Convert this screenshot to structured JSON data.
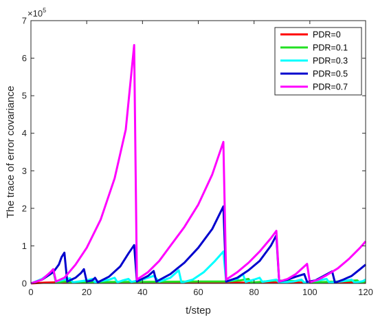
{
  "chart_data": {
    "type": "line",
    "xlabel": "t/step",
    "ylabel": "The trace of error covariance",
    "y_multiplier": "×10",
    "y_multiplier_exponent": "5",
    "xlim": [
      0,
      120
    ],
    "ylim": [
      0,
      7
    ],
    "y_units": "x10^5",
    "x_ticks": [
      "0",
      "20",
      "40",
      "60",
      "80",
      "100",
      "120"
    ],
    "y_ticks": [
      "0",
      "1",
      "2",
      "3",
      "4",
      "5",
      "6",
      "7"
    ],
    "grid": false,
    "legend_position": "top-right",
    "series": [
      {
        "name": "PDR=0",
        "color": "#ff0000",
        "points": [
          [
            0,
            0
          ],
          [
            5,
            0.02
          ],
          [
            10,
            0.03
          ],
          [
            15,
            0.03
          ],
          [
            20,
            0.03
          ],
          [
            30,
            0.03
          ],
          [
            40,
            0.02
          ],
          [
            60,
            0.02
          ],
          [
            80,
            0.02
          ],
          [
            100,
            0.02
          ],
          [
            120,
            0.02
          ]
        ]
      },
      {
        "name": "PDR=0.1",
        "color": "#22e022",
        "points": [
          [
            0,
            0
          ],
          [
            4,
            0.1
          ],
          [
            7,
            0.25
          ],
          [
            8,
            0.33
          ],
          [
            9,
            0.02
          ],
          [
            12,
            0.05
          ],
          [
            15,
            0.03
          ],
          [
            20,
            0.03
          ],
          [
            30,
            0.04
          ],
          [
            40,
            0.04
          ],
          [
            60,
            0.05
          ],
          [
            70,
            0.05
          ],
          [
            75,
            0.08
          ],
          [
            78,
            0.12
          ],
          [
            79,
            0.02
          ],
          [
            85,
            0.06
          ],
          [
            88,
            0.08
          ],
          [
            95,
            0.06
          ],
          [
            97,
            0.09
          ],
          [
            98,
            0.02
          ],
          [
            110,
            0.05
          ],
          [
            117,
            0.08
          ],
          [
            118,
            0.02
          ],
          [
            120,
            0.05
          ]
        ]
      },
      {
        "name": "PDR=0.3",
        "color": "#00ffff",
        "points": [
          [
            0,
            0
          ],
          [
            4,
            0.12
          ],
          [
            7,
            0.28
          ],
          [
            8,
            0.35
          ],
          [
            9,
            0.05
          ],
          [
            12,
            0.1
          ],
          [
            14,
            0.14
          ],
          [
            15,
            0.03
          ],
          [
            20,
            0.08
          ],
          [
            22,
            0.12
          ],
          [
            23,
            0.03
          ],
          [
            28,
            0.1
          ],
          [
            30,
            0.15
          ],
          [
            31,
            0.03
          ],
          [
            33,
            0.08
          ],
          [
            35,
            0.12
          ],
          [
            36,
            0.04
          ],
          [
            40,
            0.1
          ],
          [
            44,
            0.2
          ],
          [
            46,
            0.05
          ],
          [
            50,
            0.15
          ],
          [
            53,
            0.35
          ],
          [
            54,
            0.02
          ],
          [
            58,
            0.1
          ],
          [
            62,
            0.3
          ],
          [
            66,
            0.6
          ],
          [
            69,
            0.85
          ],
          [
            70,
            0.05
          ],
          [
            74,
            0.12
          ],
          [
            76,
            0.25
          ],
          [
            77,
            0.04
          ],
          [
            80,
            0.1
          ],
          [
            82,
            0.15
          ],
          [
            83,
            0.04
          ],
          [
            88,
            0.1
          ],
          [
            89,
            0.02
          ],
          [
            94,
            0.05
          ],
          [
            97,
            0.1
          ],
          [
            98,
            0.02
          ],
          [
            103,
            0.08
          ],
          [
            106,
            0.12
          ],
          [
            107,
            0.02
          ],
          [
            112,
            0.06
          ],
          [
            115,
            0.1
          ],
          [
            116,
            0.02
          ],
          [
            119,
            0.06
          ],
          [
            120,
            0.1
          ]
        ]
      },
      {
        "name": "PDR=0.5",
        "color": "#0000cd",
        "points": [
          [
            0,
            0
          ],
          [
            4,
            0.1
          ],
          [
            8,
            0.3
          ],
          [
            10,
            0.5
          ],
          [
            11,
            0.7
          ],
          [
            12,
            0.82
          ],
          [
            13,
            0.05
          ],
          [
            16,
            0.15
          ],
          [
            18,
            0.28
          ],
          [
            19,
            0.38
          ],
          [
            20,
            0.05
          ],
          [
            22,
            0.08
          ],
          [
            23,
            0.15
          ],
          [
            24,
            0.03
          ],
          [
            28,
            0.18
          ],
          [
            32,
            0.45
          ],
          [
            35,
            0.8
          ],
          [
            37,
            1.02
          ],
          [
            38,
            0.05
          ],
          [
            42,
            0.2
          ],
          [
            44,
            0.33
          ],
          [
            45,
            0.05
          ],
          [
            50,
            0.25
          ],
          [
            55,
            0.55
          ],
          [
            60,
            0.95
          ],
          [
            65,
            1.45
          ],
          [
            69,
            2.05
          ],
          [
            70,
            0.05
          ],
          [
            74,
            0.15
          ],
          [
            78,
            0.35
          ],
          [
            82,
            0.6
          ],
          [
            86,
            1.0
          ],
          [
            88,
            1.28
          ],
          [
            89,
            0.05
          ],
          [
            92,
            0.1
          ],
          [
            95,
            0.18
          ],
          [
            98,
            0.25
          ],
          [
            99,
            0.04
          ],
          [
            102,
            0.08
          ],
          [
            105,
            0.2
          ],
          [
            108,
            0.32
          ],
          [
            109,
            0.02
          ],
          [
            112,
            0.1
          ],
          [
            115,
            0.2
          ],
          [
            118,
            0.38
          ],
          [
            120,
            0.5
          ]
        ]
      },
      {
        "name": "PDR=0.7",
        "color": "#ff00ff",
        "points": [
          [
            0,
            0
          ],
          [
            4,
            0.1
          ],
          [
            7,
            0.3
          ],
          [
            8,
            0.38
          ],
          [
            9,
            0.05
          ],
          [
            12,
            0.15
          ],
          [
            16,
            0.5
          ],
          [
            20,
            0.95
          ],
          [
            25,
            1.7
          ],
          [
            30,
            2.8
          ],
          [
            34,
            4.1
          ],
          [
            37,
            6.35
          ],
          [
            38,
            0.1
          ],
          [
            42,
            0.3
          ],
          [
            46,
            0.6
          ],
          [
            50,
            1.0
          ],
          [
            55,
            1.5
          ],
          [
            60,
            2.1
          ],
          [
            65,
            2.9
          ],
          [
            69,
            3.77
          ],
          [
            70,
            0.1
          ],
          [
            74,
            0.3
          ],
          [
            78,
            0.55
          ],
          [
            82,
            0.85
          ],
          [
            86,
            1.2
          ],
          [
            88,
            1.4
          ],
          [
            89,
            0.05
          ],
          [
            92,
            0.12
          ],
          [
            95,
            0.25
          ],
          [
            98,
            0.45
          ],
          [
            99,
            0.52
          ],
          [
            100,
            0.03
          ],
          [
            103,
            0.1
          ],
          [
            106,
            0.22
          ],
          [
            110,
            0.4
          ],
          [
            114,
            0.65
          ],
          [
            118,
            0.95
          ],
          [
            120,
            1.12
          ]
        ]
      }
    ]
  }
}
